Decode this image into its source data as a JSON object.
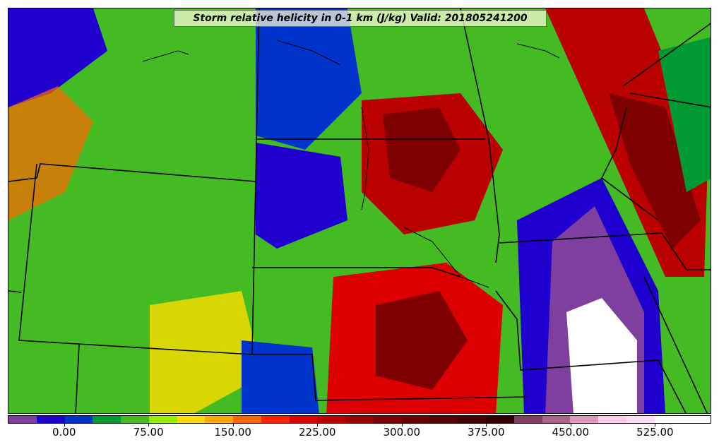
{
  "title": "Storm relative helicity in 0-1 km (J/kg) Valid: 201805241200",
  "colorbar": {
    "tick_labels": [
      "0.00",
      "75.00",
      "150.00",
      "225.00",
      "300.00",
      "375.00",
      "450.00",
      "525.00"
    ],
    "tick_values": [
      0,
      75,
      150,
      225,
      300,
      375,
      450,
      525
    ],
    "min": -50,
    "max": 575,
    "bin_width": 25,
    "colors": [
      "#7f3f9f",
      "#1f00cf",
      "#0033cc",
      "#009933",
      "#44bb22",
      "#99ee00",
      "#ffdd00",
      "#ffaa00",
      "#ff6600",
      "#ff2200",
      "#dd0000",
      "#bb0000",
      "#990000",
      "#7f0000",
      "#6a0000",
      "#550000",
      "#440000",
      "#330000",
      "#7f3f5f",
      "#aa6688",
      "#dd99bb",
      "#ffccee",
      "#ffe0f8",
      "#ffffff",
      "#ffffff"
    ]
  },
  "map": {
    "field": "Storm relative helicity in 0-1 km",
    "units": "J/kg",
    "valid_time": "201805241200"
  }
}
